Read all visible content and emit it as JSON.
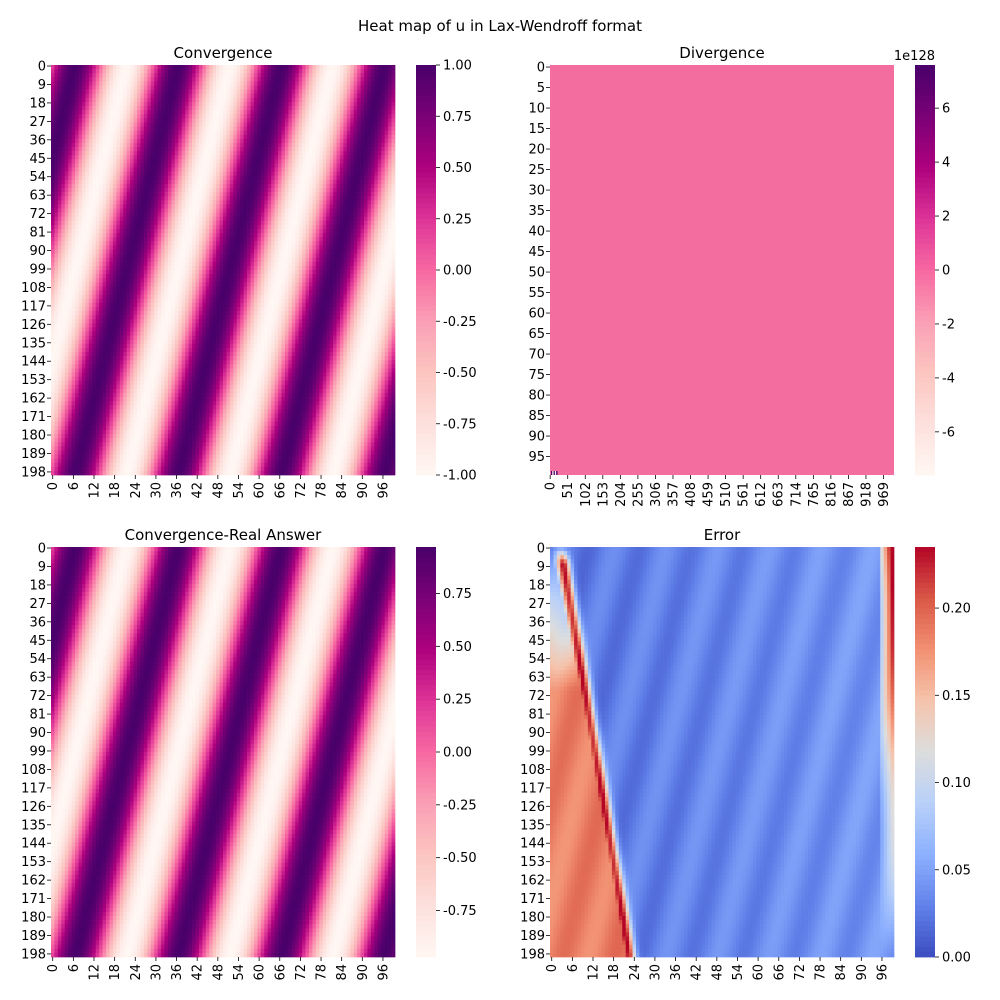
{
  "figure": {
    "suptitle": "Heat map of u in Lax-Wendroff format"
  },
  "colors": {
    "rdpu": [
      "#fff7f3",
      "#fde0dd",
      "#fcc5c0",
      "#fa9fb5",
      "#f768a1",
      "#dd3497",
      "#ae017e",
      "#7a0177",
      "#49006a"
    ],
    "coolwarm": [
      "#3b4cc0",
      "#6282ea",
      "#8db0fe",
      "#b8d0f9",
      "#dddddd",
      "#f5c4ac",
      "#f29072",
      "#d95847",
      "#b40426"
    ],
    "divergence_fill": "#f46d9f"
  },
  "chart_data": [
    {
      "type": "heatmap",
      "title": "Convergence",
      "cmap": "RdPu",
      "field": "wave",
      "rows": 200,
      "cols": 100,
      "xticks": [
        "0",
        "6",
        "12",
        "18",
        "24",
        "30",
        "36",
        "42",
        "48",
        "54",
        "60",
        "66",
        "72",
        "78",
        "84",
        "90",
        "96"
      ],
      "yticks": [
        "0",
        "9",
        "18",
        "27",
        "36",
        "45",
        "54",
        "63",
        "72",
        "81",
        "90",
        "99",
        "108",
        "117",
        "126",
        "135",
        "144",
        "153",
        "162",
        "171",
        "180",
        "189",
        "198"
      ],
      "colorbar": {
        "vmin": -1.0,
        "vmax": 1.0,
        "ticks": [
          "-1.00",
          "-0.75",
          "-0.50",
          "-0.25",
          "0.00",
          "0.25",
          "0.50",
          "0.75",
          "1.00"
        ],
        "ticks_vals": [
          -1,
          -0.75,
          -0.5,
          -0.25,
          0,
          0.25,
          0.5,
          0.75,
          1
        ],
        "offset_label": ""
      }
    },
    {
      "type": "heatmap",
      "title": "Divergence",
      "cmap": "RdPu",
      "field": "uniform",
      "value": 0,
      "rows": 100,
      "cols": 1000,
      "xticks": [
        "0",
        "51",
        "102",
        "153",
        "204",
        "255",
        "306",
        "357",
        "408",
        "459",
        "510",
        "561",
        "612",
        "663",
        "714",
        "765",
        "816",
        "867",
        "918",
        "969"
      ],
      "yticks": [
        "0",
        "5",
        "10",
        "15",
        "20",
        "25",
        "30",
        "35",
        "40",
        "45",
        "50",
        "55",
        "60",
        "65",
        "70",
        "75",
        "80",
        "85",
        "90",
        "95"
      ],
      "colorbar": {
        "vmin": -7.6,
        "vmax": 7.6,
        "ticks": [
          "-6",
          "-4",
          "-2",
          "0",
          "2",
          "4",
          "6"
        ],
        "ticks_vals": [
          -6,
          -4,
          -2,
          0,
          2,
          4,
          6
        ],
        "offset_label": "1e128"
      }
    },
    {
      "type": "heatmap",
      "title": "Convergence-Real Answer",
      "cmap": "RdPu",
      "field": "wave",
      "rows": 200,
      "cols": 100,
      "xticks": [
        "0",
        "6",
        "12",
        "18",
        "24",
        "30",
        "36",
        "42",
        "48",
        "54",
        "60",
        "66",
        "72",
        "78",
        "84",
        "90",
        "96"
      ],
      "yticks": [
        "0",
        "9",
        "18",
        "27",
        "36",
        "45",
        "54",
        "63",
        "72",
        "81",
        "90",
        "99",
        "108",
        "117",
        "126",
        "135",
        "144",
        "153",
        "162",
        "171",
        "180",
        "189",
        "198"
      ],
      "colorbar": {
        "vmin": -0.97,
        "vmax": 0.97,
        "ticks": [
          "-0.75",
          "-0.50",
          "-0.25",
          "0.00",
          "0.25",
          "0.50",
          "0.75"
        ],
        "ticks_vals": [
          -0.75,
          -0.5,
          -0.25,
          0,
          0.25,
          0.5,
          0.75
        ],
        "offset_label": ""
      }
    },
    {
      "type": "heatmap",
      "title": "Error",
      "cmap": "coolwarm",
      "field": "error",
      "rows": 200,
      "cols": 100,
      "xticks": [
        "0",
        "6",
        "12",
        "18",
        "24",
        "30",
        "36",
        "42",
        "48",
        "54",
        "60",
        "66",
        "72",
        "78",
        "84",
        "90",
        "96"
      ],
      "yticks": [
        "0",
        "9",
        "18",
        "27",
        "36",
        "45",
        "54",
        "63",
        "72",
        "81",
        "90",
        "99",
        "108",
        "117",
        "126",
        "135",
        "144",
        "153",
        "162",
        "171",
        "180",
        "189",
        "198"
      ],
      "colorbar": {
        "vmin": 0.0,
        "vmax": 0.235,
        "ticks": [
          "0.00",
          "0.05",
          "0.10",
          "0.15",
          "0.20"
        ],
        "ticks_vals": [
          0,
          0.05,
          0.1,
          0.15,
          0.2
        ],
        "offset_label": ""
      }
    }
  ]
}
